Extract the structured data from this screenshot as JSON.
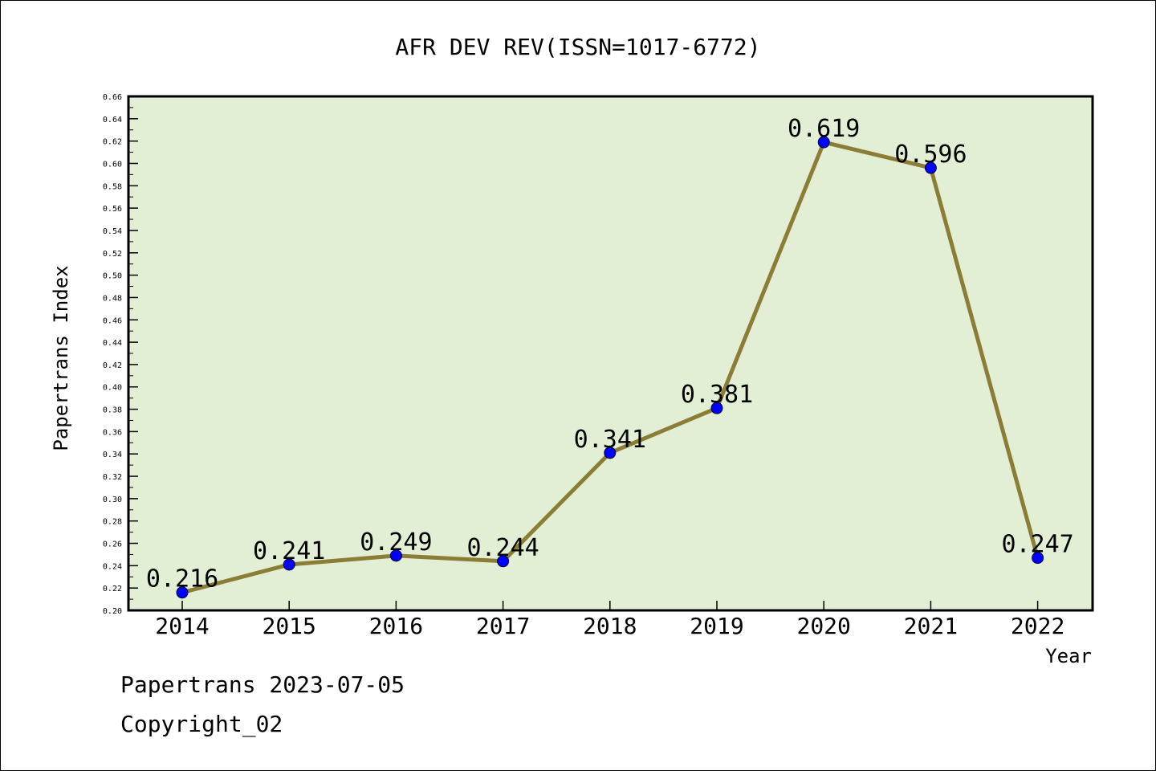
{
  "chart_data": {
    "type": "line",
    "title": "AFR DEV REV(ISSN=1017-6772)",
    "xlabel": "Year",
    "ylabel": "Papertrans Index",
    "categories": [
      "2014",
      "2015",
      "2016",
      "2017",
      "2018",
      "2019",
      "2020",
      "2021",
      "2022"
    ],
    "series": [
      {
        "values": [
          0.216,
          0.241,
          0.249,
          0.244,
          0.341,
          0.381,
          0.619,
          0.596,
          0.247
        ],
        "labels": [
          "0.216",
          "0.241",
          "0.249",
          "0.244",
          "0.341",
          "0.381",
          "0.619",
          "0.596",
          "0.247"
        ]
      }
    ],
    "ylim": [
      0.2,
      0.66
    ],
    "yticks": [
      "0.20",
      "0.22",
      "0.24",
      "0.26",
      "0.28",
      "0.30",
      "0.32",
      "0.34",
      "0.36",
      "0.38",
      "0.40",
      "0.42",
      "0.44",
      "0.46",
      "0.48",
      "0.50",
      "0.52",
      "0.54",
      "0.56",
      "0.58",
      "0.60",
      "0.62",
      "0.64",
      "0.66"
    ],
    "grid": false,
    "colors": {
      "plot_background": "#e2efd5",
      "line": "#8b7d35",
      "marker": "#0000ff"
    }
  },
  "footer": {
    "line1": "Papertrans 2023-07-05",
    "line2": "Copyright_02"
  }
}
